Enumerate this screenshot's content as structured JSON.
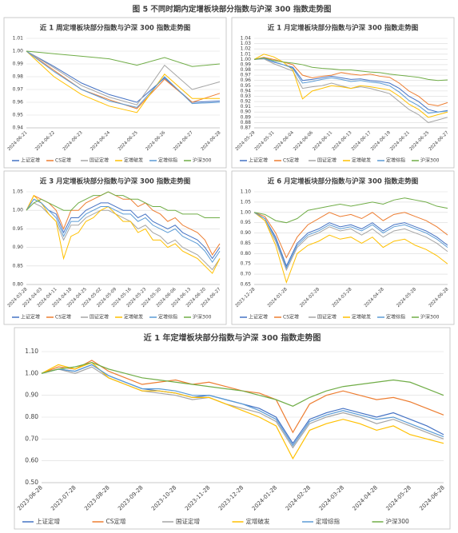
{
  "caption": "图 5 不同时期内定增板块部分指数与沪深 300 指数走势图",
  "chart_data": [
    {
      "type": "line",
      "title": "近 1 周定增板块部分指数与沪深 300 指数走势图",
      "categories": [
        "2024-06-21",
        "2024-06-22",
        "2024-06-23",
        "2024-06-24",
        "2024-06-25",
        "2024-06-26",
        "2024-06-27",
        "2024-06-28"
      ],
      "ylim": [
        0.94,
        1.01
      ],
      "yticks": [
        0.94,
        0.95,
        0.96,
        0.97,
        0.98,
        0.99,
        {
          "value": 1,
          "label": "1.00"
        },
        1.01
      ],
      "grid": true,
      "series": [
        {
          "name": "上证定增",
          "color": "#4472c4",
          "values": [
            1.0,
            0.988,
            0.975,
            0.966,
            0.96,
            0.979,
            0.96,
            0.961
          ]
        },
        {
          "name": "CS定增",
          "color": "#ed7d31",
          "values": [
            1.0,
            0.985,
            0.97,
            0.962,
            0.955,
            0.978,
            0.96,
            0.967
          ]
        },
        {
          "name": "国证定增",
          "color": "#a5a5a5",
          "values": [
            1.0,
            0.987,
            0.973,
            0.964,
            0.958,
            0.989,
            0.97,
            0.976
          ]
        },
        {
          "name": "定增破发",
          "color": "#ffc000",
          "values": [
            1.0,
            0.98,
            0.966,
            0.957,
            0.952,
            0.982,
            0.963,
            0.963
          ]
        },
        {
          "name": "定增综指",
          "color": "#5b9bd5",
          "values": [
            1.0,
            0.984,
            0.97,
            0.961,
            0.956,
            0.98,
            0.959,
            0.96
          ]
        },
        {
          "name": "沪深300",
          "color": "#70ad47",
          "values": [
            1.0,
            0.998,
            0.996,
            0.994,
            0.989,
            0.995,
            0.988,
            0.99
          ]
        }
      ]
    },
    {
      "type": "line",
      "title": "近 1 月定增板块部分指数与沪深 300 指数走势图",
      "categories": [
        "2024-05-29",
        null,
        "2024-05-31",
        null,
        "2024-06-04",
        null,
        "2024-06-06",
        null,
        "2024-06-11",
        null,
        "2024-06-13",
        null,
        "2024-06-17",
        null,
        "2024-06-19",
        null,
        "2024-06-21",
        null,
        "2024-06-25",
        null,
        "2024-06-27"
      ],
      "ylim": [
        0.87,
        1.04
      ],
      "yticks": [
        0.87,
        0.88,
        0.89,
        {
          "value": 0.9,
          "label": "0.90"
        },
        0.91,
        0.92,
        0.93,
        0.94,
        0.95,
        0.96,
        0.97,
        0.98,
        0.99,
        {
          "value": 1,
          "label": "1.00"
        },
        1.01,
        1.02,
        1.03,
        1.04
      ],
      "grid": true,
      "series": [
        {
          "name": "上证定增",
          "color": "#4472c4",
          "values": [
            1.0,
            1.002,
            0.995,
            0.99,
            0.985,
            0.96,
            0.962,
            0.965,
            0.968,
            0.965,
            0.962,
            0.963,
            0.96,
            0.958,
            0.955,
            0.945,
            0.93,
            0.92,
            0.905,
            0.9,
            0.903
          ]
        },
        {
          "name": "CS定增",
          "color": "#ed7d31",
          "values": [
            1.0,
            1.004,
            1.0,
            0.995,
            0.99,
            0.97,
            0.965,
            0.968,
            0.97,
            0.975,
            0.972,
            0.97,
            0.972,
            0.968,
            0.966,
            0.955,
            0.94,
            0.93,
            0.915,
            0.912,
            0.918
          ]
        },
        {
          "name": "国证定增",
          "color": "#a5a5a5",
          "values": [
            1.0,
            1.001,
            0.992,
            0.985,
            0.978,
            0.945,
            0.948,
            0.95,
            0.955,
            0.95,
            0.945,
            0.948,
            0.945,
            0.94,
            0.935,
            0.92,
            0.905,
            0.895,
            0.88,
            0.885,
            0.89
          ]
        },
        {
          "name": "定增破发",
          "color": "#ffc000",
          "values": [
            1.0,
            1.01,
            1.005,
            0.995,
            0.98,
            0.925,
            0.94,
            0.945,
            0.95,
            0.948,
            0.945,
            0.95,
            0.948,
            0.945,
            0.942,
            0.93,
            0.915,
            0.905,
            0.89,
            0.895,
            0.9
          ]
        },
        {
          "name": "定增综指",
          "color": "#5b9bd5",
          "values": [
            1.0,
            1.002,
            0.996,
            0.99,
            0.983,
            0.955,
            0.958,
            0.962,
            0.965,
            0.962,
            0.958,
            0.96,
            0.957,
            0.955,
            0.95,
            0.938,
            0.922,
            0.912,
            0.898,
            0.9,
            0.902
          ]
        },
        {
          "name": "沪深300",
          "color": "#70ad47",
          "values": [
            1.0,
            1.003,
            0.998,
            0.995,
            0.993,
            0.99,
            0.985,
            0.983,
            0.982,
            0.98,
            0.98,
            0.978,
            0.976,
            0.975,
            0.972,
            0.97,
            0.968,
            0.966,
            0.962,
            0.96,
            0.961
          ]
        }
      ]
    },
    {
      "type": "line",
      "title": "近 3 月定增板块部分指数与沪深 300 指数走势图",
      "categories": [
        "2024-03-28",
        null,
        "2024-04-03",
        null,
        "2024-04-11",
        null,
        "2024-04-18",
        null,
        "2024-04-25",
        null,
        "2024-05-02",
        null,
        "2024-05-09",
        null,
        "2024-05-16",
        null,
        "2024-05-23",
        null,
        "2024-05-30",
        null,
        "2024-06-06",
        null,
        "2024-06-13",
        null,
        "2024-06-20",
        null,
        "2024-06-27"
      ],
      "ylim": [
        0.8,
        1.05
      ],
      "yticks": [
        {
          "value": 0.8,
          "label": "0.80"
        },
        0.85,
        {
          "value": 0.9,
          "label": "0.90"
        },
        0.95,
        {
          "value": 1,
          "label": "1.00"
        },
        1.05
      ],
      "grid": true,
      "series": [
        {
          "name": "上证定增",
          "color": "#4472c4",
          "values": [
            1.0,
            1.03,
            1.02,
            1.0,
            0.99,
            0.94,
            0.98,
            0.98,
            1.0,
            1.01,
            1.02,
            1.02,
            1.01,
            1.0,
            1.0,
            0.98,
            0.99,
            0.97,
            0.96,
            0.95,
            0.96,
            0.94,
            0.93,
            0.92,
            0.9,
            0.87,
            0.9
          ]
        },
        {
          "name": "CS定增",
          "color": "#ed7d31",
          "values": [
            1.0,
            1.04,
            1.03,
            1.02,
            1.0,
            0.95,
            1.0,
            1.0,
            1.02,
            1.03,
            1.04,
            1.05,
            1.04,
            1.03,
            1.03,
            1.01,
            1.02,
            1.0,
            0.99,
            0.97,
            0.98,
            0.96,
            0.95,
            0.94,
            0.92,
            0.88,
            0.91
          ]
        },
        {
          "name": "国证定增",
          "color": "#a5a5a5",
          "values": [
            1.0,
            1.02,
            1.01,
            0.99,
            0.97,
            0.92,
            0.96,
            0.96,
            0.98,
            0.99,
            1.0,
            1.0,
            0.99,
            0.98,
            0.97,
            0.95,
            0.96,
            0.94,
            0.93,
            0.91,
            0.92,
            0.9,
            0.89,
            0.88,
            0.86,
            0.84,
            0.87
          ]
        },
        {
          "name": "定增破发",
          "color": "#ffc000",
          "values": [
            1.0,
            1.04,
            1.02,
            0.99,
            0.97,
            0.87,
            0.93,
            0.94,
            0.97,
            0.98,
            1.0,
            1.01,
            0.99,
            0.97,
            0.97,
            0.94,
            0.95,
            0.92,
            0.92,
            0.9,
            0.91,
            0.89,
            0.88,
            0.87,
            0.85,
            0.83,
            0.87
          ]
        },
        {
          "name": "定增综指",
          "color": "#5b9bd5",
          "values": [
            1.0,
            1.03,
            1.02,
            1.0,
            0.98,
            0.93,
            0.97,
            0.97,
            0.99,
            1.0,
            1.01,
            1.01,
            1.0,
            0.99,
            0.99,
            0.97,
            0.98,
            0.96,
            0.95,
            0.94,
            0.95,
            0.93,
            0.92,
            0.91,
            0.89,
            0.86,
            0.89
          ]
        },
        {
          "name": "沪深300",
          "color": "#70ad47",
          "values": [
            1.0,
            1.02,
            1.03,
            1.02,
            1.01,
            1.0,
            1.0,
            1.02,
            1.03,
            1.04,
            1.04,
            1.05,
            1.04,
            1.04,
            1.03,
            1.03,
            1.02,
            1.01,
            1.01,
            1.0,
            1.0,
            0.99,
            0.99,
            0.99,
            0.98,
            0.98,
            0.98
          ]
        }
      ]
    },
    {
      "type": "line",
      "title": "近 6 月定增板块部分指数与沪深 300 指数走势图",
      "categories": [
        "2023-12-28",
        null,
        null,
        "2024-01-28",
        null,
        null,
        "2024-02-28",
        null,
        null,
        "2024-03-28",
        null,
        null,
        "2024-04-28",
        null,
        null,
        "2024-05-28",
        null,
        null,
        "2024-06-28"
      ],
      "ylim": [
        0.65,
        1.1
      ],
      "yticks": [
        0.65,
        {
          "value": 0.7,
          "label": "0.70"
        },
        0.75,
        {
          "value": 0.8,
          "label": "0.80"
        },
        0.85,
        {
          "value": 0.9,
          "label": "0.90"
        },
        0.95,
        {
          "value": 1,
          "label": "1.00"
        },
        1.05,
        {
          "value": 1.1,
          "label": "1.10"
        }
      ],
      "grid": true,
      "series": [
        {
          "name": "上证定增",
          "color": "#4472c4",
          "values": [
            1.0,
            0.97,
            0.88,
            0.74,
            0.85,
            0.9,
            0.92,
            0.95,
            0.93,
            0.94,
            0.92,
            0.95,
            0.91,
            0.94,
            0.95,
            0.93,
            0.91,
            0.88,
            0.84
          ]
        },
        {
          "name": "CS定增",
          "color": "#ed7d31",
          "values": [
            1.0,
            0.98,
            0.9,
            0.78,
            0.88,
            0.94,
            0.97,
            1.0,
            0.98,
            0.99,
            0.97,
            1.0,
            0.96,
            0.99,
            1.0,
            0.98,
            0.96,
            0.93,
            0.89
          ]
        },
        {
          "name": "国证定增",
          "color": "#a5a5a5",
          "values": [
            1.0,
            0.96,
            0.86,
            0.72,
            0.83,
            0.88,
            0.9,
            0.93,
            0.91,
            0.92,
            0.89,
            0.92,
            0.88,
            0.91,
            0.92,
            0.9,
            0.88,
            0.85,
            0.81
          ]
        },
        {
          "name": "定增破发",
          "color": "#ffc000",
          "values": [
            1.0,
            0.96,
            0.84,
            0.66,
            0.8,
            0.84,
            0.86,
            0.89,
            0.87,
            0.88,
            0.85,
            0.88,
            0.83,
            0.86,
            0.87,
            0.84,
            0.82,
            0.79,
            0.75
          ]
        },
        {
          "name": "定增综指",
          "color": "#5b9bd5",
          "values": [
            1.0,
            0.97,
            0.87,
            0.73,
            0.84,
            0.89,
            0.91,
            0.94,
            0.92,
            0.93,
            0.91,
            0.94,
            0.9,
            0.93,
            0.94,
            0.92,
            0.9,
            0.87,
            0.83
          ]
        },
        {
          "name": "沪深300",
          "color": "#70ad47",
          "values": [
            1.0,
            0.99,
            0.96,
            0.95,
            0.97,
            1.01,
            1.02,
            1.03,
            1.04,
            1.03,
            1.04,
            1.05,
            1.04,
            1.06,
            1.07,
            1.06,
            1.05,
            1.03,
            1.02
          ]
        }
      ]
    },
    {
      "type": "line",
      "title": "近 1 年定增板块部分指数与沪深 300 指数走势图",
      "categories": [
        "2023-06-28",
        null,
        "2023-07-28",
        null,
        "2023-08-28",
        null,
        "2023-09-28",
        null,
        "2023-10-28",
        null,
        "2023-11-28",
        null,
        "2023-12-28",
        null,
        "2024-01-28",
        null,
        "2024-02-28",
        null,
        "2024-03-28",
        null,
        "2024-04-28",
        null,
        "2024-05-28",
        null,
        "2024-06-28"
      ],
      "ylim": [
        0.5,
        1.1
      ],
      "yticks": [
        {
          "value": 0.5,
          "label": "0.50"
        },
        {
          "value": 0.6,
          "label": "0.60"
        },
        {
          "value": 0.7,
          "label": "0.70"
        },
        {
          "value": 0.8,
          "label": "0.80"
        },
        {
          "value": 0.9,
          "label": "0.90"
        },
        {
          "value": 1,
          "label": "1.00"
        },
        {
          "value": 1.1,
          "label": "1.10"
        }
      ],
      "grid": true,
      "series": [
        {
          "name": "上证定增",
          "color": "#4472c4",
          "values": [
            1.0,
            1.02,
            1.01,
            1.04,
            0.99,
            0.96,
            0.93,
            0.92,
            0.91,
            0.89,
            0.9,
            0.88,
            0.86,
            0.84,
            0.8,
            0.68,
            0.79,
            0.82,
            0.84,
            0.82,
            0.8,
            0.82,
            0.79,
            0.76,
            0.72
          ]
        },
        {
          "name": "CS定增",
          "color": "#ed7d31",
          "values": [
            1.0,
            1.03,
            1.02,
            1.06,
            1.01,
            0.98,
            0.95,
            0.96,
            0.97,
            0.95,
            0.96,
            0.94,
            0.92,
            0.91,
            0.88,
            0.73,
            0.86,
            0.9,
            0.92,
            0.9,
            0.88,
            0.89,
            0.87,
            0.84,
            0.81
          ]
        },
        {
          "name": "国证定增",
          "color": "#a5a5a5",
          "values": [
            1.0,
            1.02,
            1.0,
            1.03,
            0.98,
            0.95,
            0.92,
            0.91,
            0.9,
            0.88,
            0.89,
            0.86,
            0.84,
            0.82,
            0.78,
            0.66,
            0.77,
            0.8,
            0.82,
            0.8,
            0.77,
            0.79,
            0.76,
            0.73,
            0.7
          ]
        },
        {
          "name": "定增破发",
          "color": "#ffc000",
          "values": [
            1.0,
            1.04,
            1.02,
            1.05,
            0.98,
            0.95,
            0.92,
            0.92,
            0.91,
            0.89,
            0.89,
            0.86,
            0.83,
            0.8,
            0.76,
            0.61,
            0.74,
            0.77,
            0.79,
            0.77,
            0.74,
            0.76,
            0.72,
            0.7,
            0.68
          ]
        },
        {
          "name": "定增综指",
          "color": "#5b9bd5",
          "values": [
            1.0,
            1.02,
            1.01,
            1.04,
            0.99,
            0.96,
            0.93,
            0.93,
            0.92,
            0.9,
            0.9,
            0.88,
            0.86,
            0.83,
            0.79,
            0.67,
            0.78,
            0.81,
            0.83,
            0.81,
            0.79,
            0.8,
            0.77,
            0.74,
            0.71
          ]
        },
        {
          "name": "沪深300",
          "color": "#70ad47",
          "values": [
            1.0,
            1.02,
            1.03,
            1.05,
            1.02,
            1.0,
            0.98,
            0.97,
            0.96,
            0.95,
            0.94,
            0.93,
            0.92,
            0.9,
            0.88,
            0.85,
            0.89,
            0.92,
            0.94,
            0.95,
            0.96,
            0.97,
            0.96,
            0.93,
            0.9
          ]
        }
      ]
    }
  ]
}
